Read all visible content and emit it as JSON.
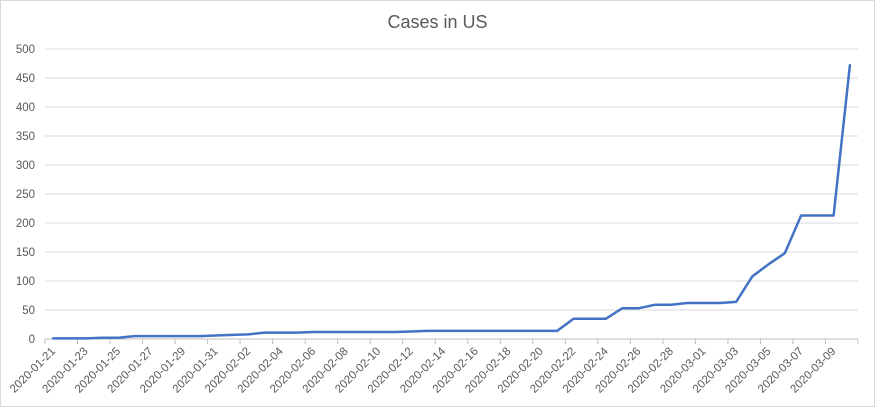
{
  "chart_data": {
    "type": "line",
    "title": "Cases in US",
    "xlabel": "",
    "ylabel": "",
    "ylim": [
      0,
      500
    ],
    "yticks": [
      0,
      50,
      100,
      150,
      200,
      250,
      300,
      350,
      400,
      450,
      500
    ],
    "grid": true,
    "line_color": "#4472C4",
    "x": [
      "2020-01-21",
      "2020-01-22",
      "2020-01-23",
      "2020-01-24",
      "2020-01-25",
      "2020-01-26",
      "2020-01-27",
      "2020-01-28",
      "2020-01-29",
      "2020-01-30",
      "2020-01-31",
      "2020-02-01",
      "2020-02-02",
      "2020-02-03",
      "2020-02-04",
      "2020-02-05",
      "2020-02-06",
      "2020-02-07",
      "2020-02-08",
      "2020-02-09",
      "2020-02-10",
      "2020-02-11",
      "2020-02-12",
      "2020-02-13",
      "2020-02-14",
      "2020-02-15",
      "2020-02-16",
      "2020-02-17",
      "2020-02-18",
      "2020-02-19",
      "2020-02-20",
      "2020-02-21",
      "2020-02-22",
      "2020-02-23",
      "2020-02-24",
      "2020-02-25",
      "2020-02-26",
      "2020-02-27",
      "2020-02-28",
      "2020-02-29",
      "2020-03-01",
      "2020-03-02",
      "2020-03-03",
      "2020-03-04",
      "2020-03-05",
      "2020-03-06",
      "2020-03-07",
      "2020-03-08",
      "2020-03-09",
      "2020-03-10"
    ],
    "xtick_labels": [
      "2020-01-21",
      "2020-01-23",
      "2020-01-25",
      "2020-01-27",
      "2020-01-29",
      "2020-01-31",
      "2020-02-02",
      "2020-02-04",
      "2020-02-06",
      "2020-02-08",
      "2020-02-10",
      "2020-02-12",
      "2020-02-14",
      "2020-02-16",
      "2020-02-18",
      "2020-02-20",
      "2020-02-22",
      "2020-02-24",
      "2020-02-26",
      "2020-02-28",
      "2020-03-01",
      "2020-03-03",
      "2020-03-05",
      "2020-03-07",
      "2020-03-09"
    ],
    "series": [
      {
        "name": "Cases in US",
        "values": [
          1,
          1,
          1,
          2,
          2,
          5,
          5,
          5,
          5,
          5,
          6,
          7,
          8,
          11,
          11,
          11,
          12,
          12,
          12,
          12,
          12,
          12,
          13,
          14,
          14,
          14,
          14,
          14,
          14,
          14,
          14,
          14,
          35,
          35,
          35,
          53,
          53,
          59,
          59,
          62,
          62,
          62,
          64,
          108,
          129,
          148,
          213,
          213,
          213,
          472
        ]
      }
    ]
  }
}
